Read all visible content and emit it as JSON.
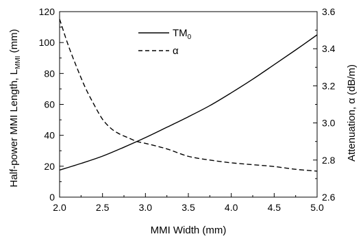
{
  "chart_data": {
    "type": "line",
    "xlabel": "MMI Width (mm)",
    "ylabel": "Half-power MMI Length, L",
    "ylabel_sub": "MMI",
    "ylabel_unit": " (mm)",
    "y2label": "Attenuation, α (dB/m)",
    "xlim": [
      2.0,
      5.0
    ],
    "ylim": [
      0,
      120
    ],
    "y2lim": [
      2.6,
      3.6
    ],
    "x_ticks": [
      "2.0",
      "2.5",
      "3.0",
      "3.5",
      "4.0",
      "4.5",
      "5.0"
    ],
    "y_ticks": [
      "0",
      "20",
      "40",
      "60",
      "80",
      "100",
      "120"
    ],
    "y2_ticks": [
      "2.6",
      "2.8",
      "3.0",
      "3.2",
      "3.4",
      "3.6"
    ],
    "legend_position": "top-center",
    "grid": false,
    "series": [
      {
        "name": "TM",
        "name_sub": "0",
        "axis": "left",
        "style": "solid",
        "color": "#000000",
        "x": [
          2.0,
          2.25,
          2.5,
          2.75,
          3.0,
          3.25,
          3.5,
          3.75,
          4.0,
          4.25,
          4.5,
          4.75,
          5.0
        ],
        "y": [
          17.5,
          21.8,
          26.5,
          32.3,
          38.5,
          45.2,
          52.0,
          59.2,
          67.5,
          76.3,
          85.7,
          95.2,
          105.0
        ]
      },
      {
        "name": "α",
        "axis": "right",
        "style": "dashed",
        "color": "#000000",
        "x": [
          2.0,
          2.1,
          2.2,
          2.3,
          2.4,
          2.5,
          2.6,
          2.7,
          2.8,
          2.9,
          3.0,
          3.25,
          3.5,
          3.75,
          4.0,
          4.25,
          4.5,
          4.75,
          5.0
        ],
        "y": [
          3.56,
          3.42,
          3.3,
          3.19,
          3.1,
          3.02,
          2.97,
          2.94,
          2.92,
          2.9,
          2.89,
          2.86,
          2.82,
          2.8,
          2.785,
          2.775,
          2.765,
          2.75,
          2.74
        ]
      }
    ]
  }
}
